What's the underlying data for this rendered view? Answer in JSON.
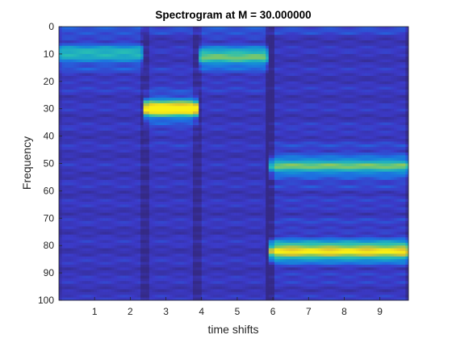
{
  "chart_data": {
    "type": "heatmap",
    "title": "Spectrogram at M = 30.000000",
    "xlabel": "time shifts",
    "ylabel": "Frequency",
    "xlim": [
      0,
      9.8
    ],
    "ylim": [
      0,
      100
    ],
    "y_reversed": true,
    "xticks": [
      1,
      2,
      3,
      4,
      5,
      6,
      7,
      8,
      9
    ],
    "yticks": [
      0,
      10,
      20,
      30,
      40,
      50,
      60,
      70,
      80,
      90,
      100
    ],
    "colormap": "parula",
    "segments": [
      {
        "x_range": [
          0,
          2.4
        ],
        "peak_frequency": 10,
        "level": 0.42
      },
      {
        "x_range": [
          2.4,
          3.9
        ],
        "peak_frequency": 30,
        "level": 0.95
      },
      {
        "x_range": [
          3.9,
          5.9
        ],
        "peak_frequency": 11,
        "level": 0.55
      },
      {
        "x_range": [
          5.9,
          9.8
        ],
        "peak_frequency": 51,
        "level": 0.5
      },
      {
        "x_range": [
          5.9,
          9.8
        ],
        "peak_frequency": 82,
        "level": 0.82
      }
    ]
  },
  "colors": {
    "background_low": "#3a2ed0",
    "mid": "#2aa9df",
    "high": "#f6e81c"
  }
}
